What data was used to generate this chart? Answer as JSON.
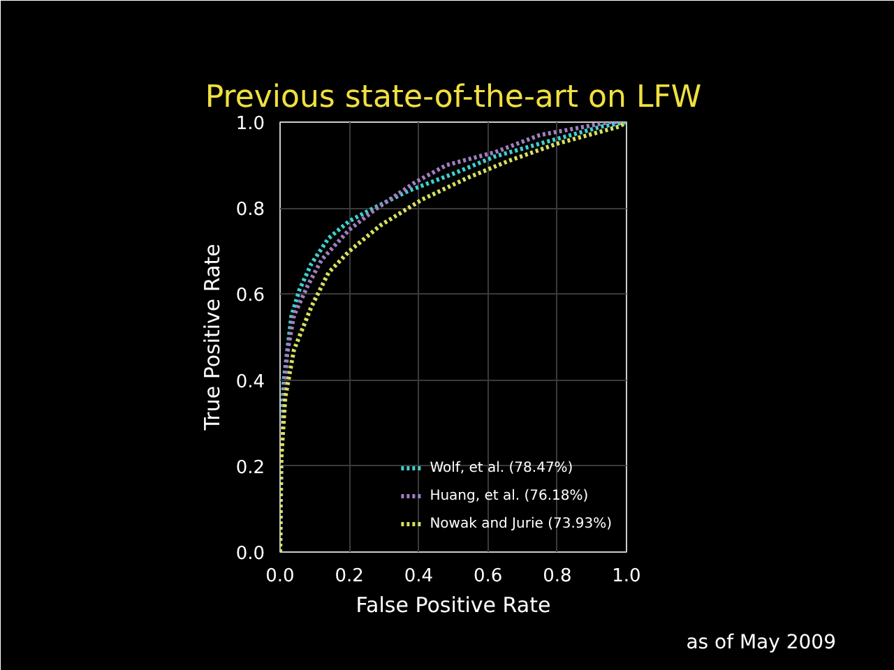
{
  "chart_data": {
    "type": "line",
    "title": "Previous state-of-the-art on LFW",
    "xlabel": "False Positive Rate",
    "ylabel": "True Positive Rate",
    "annotations": [
      "as of May 2009"
    ],
    "xlim": [
      0,
      1
    ],
    "ylim": [
      0,
      1
    ],
    "xticks": [
      {
        "value": 0,
        "label": "0.0"
      },
      {
        "value": 0.2,
        "label": "0.2"
      },
      {
        "value": 0.4,
        "label": "0.4"
      },
      {
        "value": 0.6,
        "label": "0.6"
      },
      {
        "value": 0.8,
        "label": "0.8"
      },
      {
        "value": 1,
        "label": "1.0"
      }
    ],
    "yticks": [
      {
        "value": 0,
        "label": "0.0"
      },
      {
        "value": 0.2,
        "label": "0.2"
      },
      {
        "value": 0.4,
        "label": "0.4"
      },
      {
        "value": 0.6,
        "label": "0.6"
      },
      {
        "value": 0.8,
        "label": "0.8"
      },
      {
        "value": 1,
        "label": "1.0"
      }
    ],
    "grid": true,
    "legend": "bottom right",
    "line_style": "dotted",
    "marker": "none",
    "series": [
      {
        "name": "Wolf, et al. (78.47%)",
        "color": "#40d0d0",
        "x": [
          0,
          0.005,
          0.011,
          0.033,
          0.056,
          0.09,
          0.14,
          0.2,
          0.27,
          0.37,
          0.5,
          0.62,
          0.75,
          0.93,
          1
        ],
        "values": [
          0,
          0.3,
          0.4,
          0.55,
          0.61,
          0.67,
          0.73,
          0.77,
          0.8,
          0.84,
          0.88,
          0.92,
          0.95,
          0.99,
          1
        ]
      },
      {
        "name": "Huang, et al. (76.18%)",
        "color": "#a080c0",
        "x": [
          0,
          0.005,
          0.02,
          0.04,
          0.08,
          0.12,
          0.2,
          0.28,
          0.39,
          0.48,
          0.62,
          0.75,
          0.95,
          1
        ],
        "values": [
          0,
          0.28,
          0.46,
          0.55,
          0.62,
          0.68,
          0.75,
          0.8,
          0.86,
          0.9,
          0.93,
          0.97,
          1,
          1
        ]
      },
      {
        "name": "Nowak and Jurie (73.93%)",
        "color": "#d8e060",
        "x": [
          0,
          0.002,
          0.015,
          0.04,
          0.09,
          0.14,
          0.2,
          0.29,
          0.41,
          0.54,
          0.66,
          0.8,
          0.98,
          1
        ],
        "values": [
          0,
          0.2,
          0.36,
          0.47,
          0.57,
          0.65,
          0.7,
          0.76,
          0.82,
          0.87,
          0.91,
          0.95,
          0.99,
          1
        ]
      }
    ]
  }
}
